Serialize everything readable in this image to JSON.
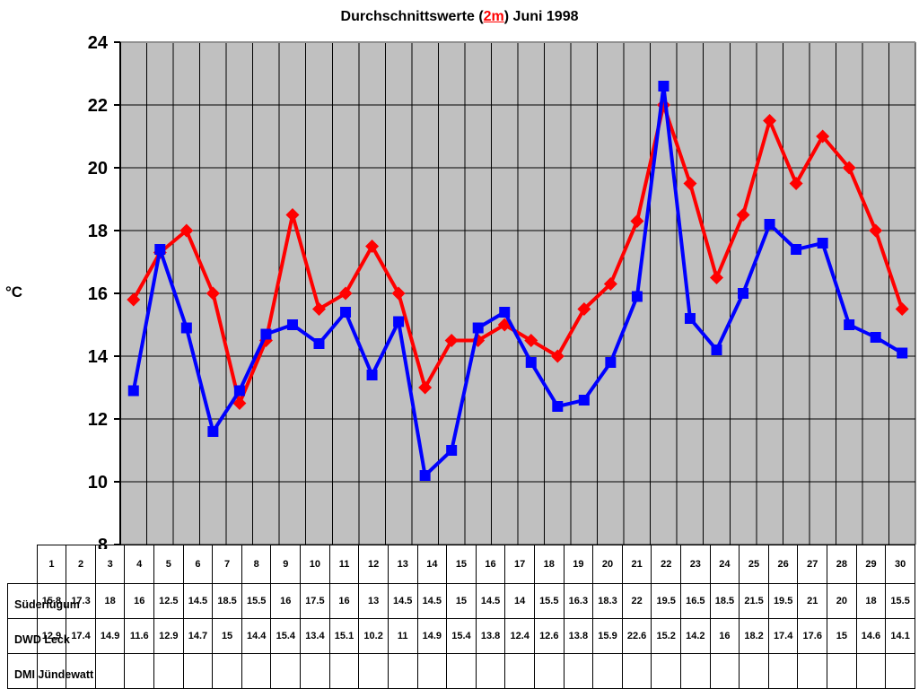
{
  "title": {
    "prefix": "Durchschnittswerte (",
    "highlight": "2m",
    "suffix": ") Juni 1998"
  },
  "chart_data": {
    "type": "line",
    "title": "Durchschnittswerte (2m) Juni 1998",
    "ylabel": "°C",
    "xlabel": "",
    "x": [
      1,
      2,
      3,
      4,
      5,
      6,
      7,
      8,
      9,
      10,
      11,
      12,
      13,
      14,
      15,
      16,
      17,
      18,
      19,
      20,
      21,
      22,
      23,
      24,
      25,
      26,
      27,
      28,
      29,
      30
    ],
    "ylim": [
      8,
      24
    ],
    "ytick_step": 2,
    "grid": true,
    "plot_bg": "#C0C0C0",
    "grid_color": "#000000",
    "border_color": "#909090",
    "legend_position": "table-left",
    "series": [
      {
        "name": "Süderlügum",
        "color": "#FF0000",
        "marker": "diamond",
        "values": [
          15.8,
          17.3,
          18,
          16,
          12.5,
          14.5,
          18.5,
          15.5,
          16,
          17.5,
          16,
          13,
          14.5,
          14.5,
          15,
          14.5,
          14,
          15.5,
          16.3,
          18.3,
          22,
          19.5,
          16.5,
          18.5,
          21.5,
          19.5,
          21,
          20,
          18,
          15.5
        ]
      },
      {
        "name": "DWD Leck",
        "color": "#0000FF",
        "marker": "square",
        "values": [
          12.9,
          17.4,
          14.9,
          11.6,
          12.9,
          14.7,
          15,
          14.4,
          15.4,
          13.4,
          15.1,
          10.2,
          11,
          14.9,
          15.4,
          13.8,
          12.4,
          12.6,
          13.8,
          15.9,
          22.6,
          15.2,
          14.2,
          16,
          18.2,
          17.4,
          17.6,
          15,
          14.6,
          14.1
        ]
      },
      {
        "name": "DMI Jündewatt",
        "color": "#00FF00",
        "marker": "triangle",
        "values": []
      }
    ]
  }
}
